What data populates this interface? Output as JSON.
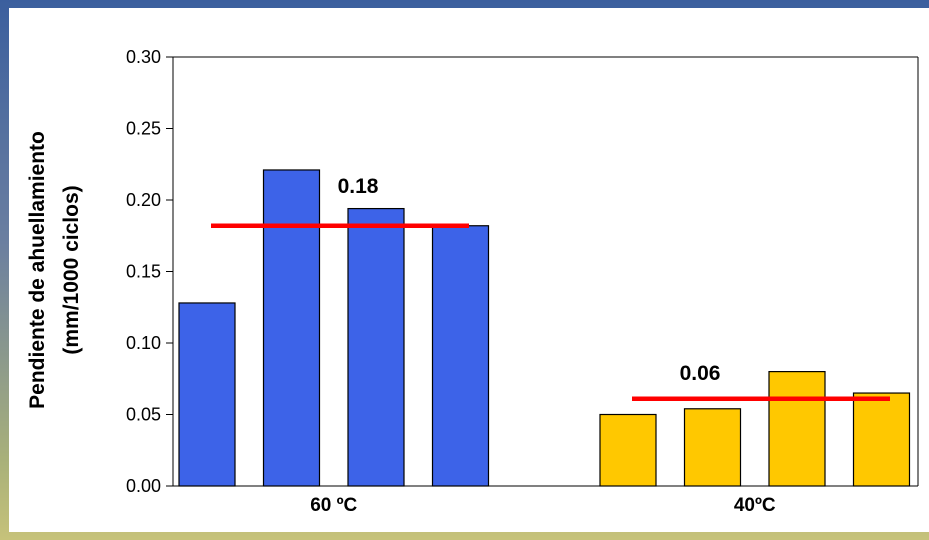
{
  "chart_data": {
    "type": "bar",
    "ylabel_line1": "Pendiente de ahuellamiento",
    "ylabel_line2": "(mm/1000 ciclos)",
    "ylim": [
      0,
      0.3
    ],
    "yticks": [
      "0.00",
      "0.05",
      "0.10",
      "0.15",
      "0.20",
      "0.25",
      "0.30"
    ],
    "grid": false,
    "groups": [
      {
        "label": "60 ºC",
        "color": "#3d63e8",
        "values": [
          0.128,
          0.221,
          0.194,
          0.182
        ],
        "mean_value": 0.182,
        "mean_label": "0.18"
      },
      {
        "label": "40ºC",
        "color": "#ffc800",
        "values": [
          0.05,
          0.054,
          0.08,
          0.065
        ],
        "mean_value": 0.061,
        "mean_label": "0.06"
      }
    ],
    "mean_line_color": "#ff0000"
  }
}
